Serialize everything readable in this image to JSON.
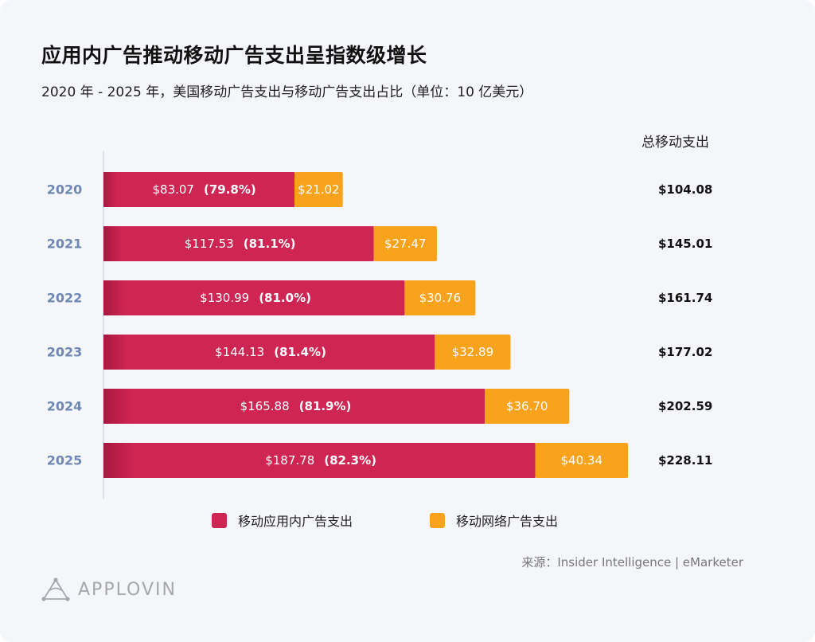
{
  "title": "应用内广告推动移动广告支出呈指数级增长",
  "subtitle": "2020 年 - 2025 年，美国移动广告支出与移动广告支出占比（单位：10 亿美元）",
  "total_header": "总移动支出",
  "colors": {
    "in_app": "#cf2553",
    "web": "#f9a21c",
    "year": "#6f88b4",
    "background": "#f5f6fa"
  },
  "legend": {
    "in_app": "移动应用内广告支出",
    "web": "移动网络广告支出"
  },
  "source": "来源：Insider Intelligence | eMarketer",
  "logo": {
    "text": "APPLOVIN",
    "icon": "applovin-triangle-icon"
  },
  "chart_data": {
    "type": "bar",
    "orientation": "horizontal",
    "stacked": true,
    "title": "应用内广告推动移动广告支出呈指数级增长",
    "categories": [
      "2020",
      "2021",
      "2022",
      "2023",
      "2024",
      "2025"
    ],
    "series": [
      {
        "name": "移动应用内广告支出",
        "values": [
          83.07,
          117.53,
          130.99,
          144.13,
          165.88,
          187.78
        ],
        "labels": [
          "$83.07",
          "$117.53",
          "$130.99",
          "$144.13",
          "$165.88",
          "$187.78"
        ],
        "share_labels": [
          "(79.8%)",
          "(81.1%)",
          "(81.0%)",
          "(81.4%)",
          "(81.9%)",
          "(82.3%)"
        ]
      },
      {
        "name": "移动网络广告支出",
        "values": [
          21.02,
          27.47,
          30.76,
          32.89,
          36.7,
          40.34
        ],
        "labels": [
          "$21.02",
          "$27.47",
          "$30.76",
          "$32.89",
          "$36.70",
          "$40.34"
        ]
      }
    ],
    "totals": [
      "$104.08",
      "$145.01",
      "$161.74",
      "$177.02",
      "$202.59",
      "$228.11"
    ],
    "total_values": [
      104.08,
      145.01,
      161.74,
      177.02,
      202.59,
      228.11
    ],
    "unit": "10 亿美元",
    "xlim": [
      0,
      228.11
    ]
  }
}
